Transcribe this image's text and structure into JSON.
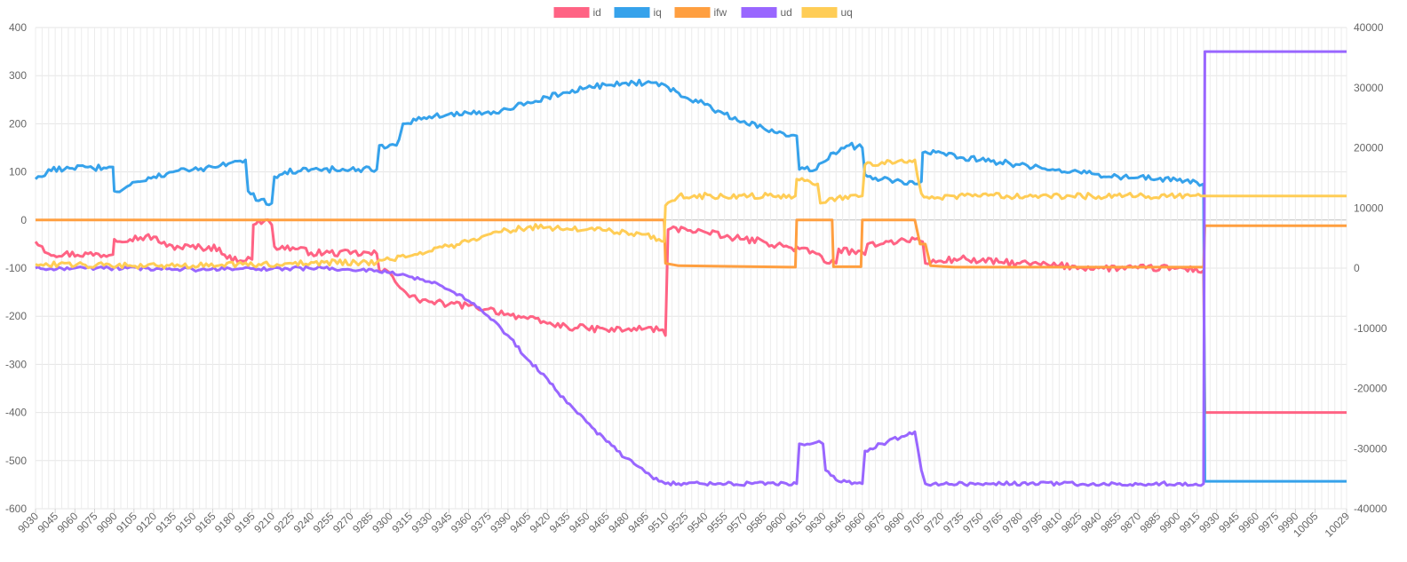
{
  "chart_data": {
    "type": "line",
    "title": "",
    "xlabel": "",
    "ylabel": "",
    "y2label": "",
    "legend_position": "top-center",
    "grid": true,
    "x_range": [
      9030,
      10029
    ],
    "ylim": [
      -600,
      400
    ],
    "y2lim": [
      -40000,
      40000
    ],
    "y_ticks": [
      400,
      300,
      200,
      100,
      0,
      -100,
      -200,
      -300,
      -400,
      -500,
      -600
    ],
    "y2_ticks": [
      40000,
      30000,
      20000,
      10000,
      0,
      -10000,
      -20000,
      -30000,
      -40000
    ],
    "x_tick_labels": [
      "9030",
      "9045",
      "9060",
      "9075",
      "9090",
      "9105",
      "9120",
      "9135",
      "9150",
      "9165",
      "9180",
      "9195",
      "9210",
      "9225",
      "9240",
      "9255",
      "9270",
      "9285",
      "9300",
      "9315",
      "9330",
      "9345",
      "9360",
      "9375",
      "9390",
      "9405",
      "9420",
      "9435",
      "9450",
      "9465",
      "9480",
      "9495",
      "9510",
      "9525",
      "9540",
      "9555",
      "9570",
      "9585",
      "9600",
      "9615",
      "9630",
      "9645",
      "9660",
      "9675",
      "9690",
      "9705",
      "9720",
      "9735",
      "9750",
      "9765",
      "9780",
      "9795",
      "9810",
      "9825",
      "9840",
      "9855",
      "9870",
      "9885",
      "9900",
      "9915",
      "9930",
      "9945",
      "9960",
      "9975",
      "9990",
      "10005",
      "10029"
    ],
    "series": [
      {
        "name": "id",
        "axis": "left",
        "color": "#ff6384",
        "noise": 7,
        "points": [
          [
            9030,
            -45
          ],
          [
            9035,
            -55
          ],
          [
            9040,
            -70
          ],
          [
            9089,
            -72
          ],
          [
            9090,
            -40
          ],
          [
            9120,
            -35
          ],
          [
            9130,
            -55
          ],
          [
            9170,
            -58
          ],
          [
            9176,
            -80
          ],
          [
            9195,
            -82
          ],
          [
            9196,
            -10
          ],
          [
            9205,
            0
          ],
          [
            9210,
            -10
          ],
          [
            9212,
            -55
          ],
          [
            9230,
            -60
          ],
          [
            9240,
            -68
          ],
          [
            9290,
            -70
          ],
          [
            9292,
            -105
          ],
          [
            9300,
            -110
          ],
          [
            9315,
            -160
          ],
          [
            9330,
            -170
          ],
          [
            9345,
            -175
          ],
          [
            9360,
            -178
          ],
          [
            9375,
            -185
          ],
          [
            9390,
            -195
          ],
          [
            9405,
            -205
          ],
          [
            9420,
            -215
          ],
          [
            9435,
            -222
          ],
          [
            9450,
            -225
          ],
          [
            9465,
            -228
          ],
          [
            9480,
            -228
          ],
          [
            9495,
            -225
          ],
          [
            9508,
            -228
          ],
          [
            9510,
            -240
          ],
          [
            9512,
            -20
          ],
          [
            9525,
            -18
          ],
          [
            9540,
            -25
          ],
          [
            9555,
            -35
          ],
          [
            9570,
            -40
          ],
          [
            9585,
            -45
          ],
          [
            9600,
            -55
          ],
          [
            9612,
            -60
          ],
          [
            9625,
            -70
          ],
          [
            9635,
            -90
          ],
          [
            9640,
            -90
          ],
          [
            9642,
            -60
          ],
          [
            9655,
            -70
          ],
          [
            9662,
            -72
          ],
          [
            9664,
            -50
          ],
          [
            9680,
            -45
          ],
          [
            9700,
            -40
          ],
          [
            9706,
            -45
          ],
          [
            9708,
            -90
          ],
          [
            9720,
            -85
          ],
          [
            9735,
            -80
          ],
          [
            9750,
            -85
          ],
          [
            9780,
            -90
          ],
          [
            9810,
            -95
          ],
          [
            9840,
            -100
          ],
          [
            9870,
            -100
          ],
          [
            9900,
            -100
          ],
          [
            9920,
            -105
          ],
          [
            9921,
            -400
          ],
          [
            10029,
            -400
          ]
        ]
      },
      {
        "name": "iq",
        "axis": "left",
        "color": "#36a2eb",
        "noise": 6,
        "points": [
          [
            9030,
            85
          ],
          [
            9035,
            90
          ],
          [
            9040,
            105
          ],
          [
            9089,
            110
          ],
          [
            9090,
            60
          ],
          [
            9100,
            70
          ],
          [
            9110,
            80
          ],
          [
            9120,
            90
          ],
          [
            9135,
            100
          ],
          [
            9150,
            105
          ],
          [
            9165,
            110
          ],
          [
            9180,
            120
          ],
          [
            9190,
            125
          ],
          [
            9192,
            60
          ],
          [
            9200,
            40
          ],
          [
            9210,
            35
          ],
          [
            9212,
            90
          ],
          [
            9220,
            100
          ],
          [
            9240,
            105
          ],
          [
            9270,
            105
          ],
          [
            9290,
            105
          ],
          [
            9292,
            155
          ],
          [
            9305,
            155
          ],
          [
            9310,
            200
          ],
          [
            9330,
            215
          ],
          [
            9345,
            220
          ],
          [
            9360,
            222
          ],
          [
            9375,
            225
          ],
          [
            9390,
            230
          ],
          [
            9405,
            245
          ],
          [
            9420,
            255
          ],
          [
            9435,
            265
          ],
          [
            9450,
            275
          ],
          [
            9465,
            280
          ],
          [
            9480,
            285
          ],
          [
            9495,
            285
          ],
          [
            9510,
            280
          ],
          [
            9525,
            255
          ],
          [
            9540,
            240
          ],
          [
            9555,
            220
          ],
          [
            9570,
            205
          ],
          [
            9585,
            190
          ],
          [
            9600,
            180
          ],
          [
            9610,
            175
          ],
          [
            9612,
            105
          ],
          [
            9625,
            105
          ],
          [
            9630,
            120
          ],
          [
            9638,
            140
          ],
          [
            9650,
            155
          ],
          [
            9660,
            150
          ],
          [
            9662,
            95
          ],
          [
            9675,
            85
          ],
          [
            9690,
            80
          ],
          [
            9700,
            75
          ],
          [
            9705,
            80
          ],
          [
            9706,
            140
          ],
          [
            9720,
            140
          ],
          [
            9735,
            130
          ],
          [
            9750,
            125
          ],
          [
            9765,
            120
          ],
          [
            9780,
            115
          ],
          [
            9795,
            110
          ],
          [
            9810,
            105
          ],
          [
            9825,
            100
          ],
          [
            9840,
            95
          ],
          [
            9855,
            90
          ],
          [
            9870,
            88
          ],
          [
            9885,
            85
          ],
          [
            9900,
            82
          ],
          [
            9915,
            78
          ],
          [
            9920,
            75
          ],
          [
            9921,
            -543
          ],
          [
            10029,
            -543
          ]
        ]
      },
      {
        "name": "ifw",
        "axis": "left",
        "color": "#ff9f40",
        "noise": 0,
        "points": [
          [
            9030,
            0
          ],
          [
            9509,
            0
          ],
          [
            9510,
            -90
          ],
          [
            9520,
            -95
          ],
          [
            9609,
            -98
          ],
          [
            9610,
            0
          ],
          [
            9637,
            0
          ],
          [
            9638,
            -97
          ],
          [
            9659,
            -97
          ],
          [
            9660,
            0
          ],
          [
            9700,
            0
          ],
          [
            9704,
            -50
          ],
          [
            9708,
            -50
          ],
          [
            9712,
            -95
          ],
          [
            9730,
            -98
          ],
          [
            9920,
            -98
          ],
          [
            9921,
            -12
          ],
          [
            10029,
            -12
          ]
        ]
      },
      {
        "name": "ud",
        "axis": "left",
        "color": "#9966ff",
        "noise": 4,
        "points": [
          [
            9030,
            -100
          ],
          [
            9100,
            -100
          ],
          [
            9150,
            -103
          ],
          [
            9200,
            -102
          ],
          [
            9250,
            -100
          ],
          [
            9290,
            -105
          ],
          [
            9300,
            -110
          ],
          [
            9315,
            -118
          ],
          [
            9330,
            -128
          ],
          [
            9345,
            -145
          ],
          [
            9360,
            -168
          ],
          [
            9375,
            -200
          ],
          [
            9390,
            -240
          ],
          [
            9405,
            -290
          ],
          [
            9420,
            -330
          ],
          [
            9435,
            -380
          ],
          [
            9450,
            -420
          ],
          [
            9465,
            -460
          ],
          [
            9480,
            -495
          ],
          [
            9495,
            -525
          ],
          [
            9505,
            -543
          ],
          [
            9510,
            -548
          ],
          [
            9610,
            -548
          ],
          [
            9612,
            -465
          ],
          [
            9625,
            -462
          ],
          [
            9630,
            -465
          ],
          [
            9632,
            -520
          ],
          [
            9640,
            -540
          ],
          [
            9660,
            -548
          ],
          [
            9662,
            -480
          ],
          [
            9675,
            -465
          ],
          [
            9690,
            -450
          ],
          [
            9700,
            -440
          ],
          [
            9705,
            -520
          ],
          [
            9708,
            -548
          ],
          [
            9920,
            -548
          ],
          [
            9921,
            350
          ],
          [
            10029,
            350
          ]
        ]
      },
      {
        "name": "uq",
        "axis": "left",
        "color": "#ffcd56",
        "noise": 6,
        "points": [
          [
            9030,
            -92
          ],
          [
            9100,
            -95
          ],
          [
            9150,
            -95
          ],
          [
            9200,
            -92
          ],
          [
            9250,
            -88
          ],
          [
            9290,
            -88
          ],
          [
            9300,
            -82
          ],
          [
            9315,
            -75
          ],
          [
            9330,
            -65
          ],
          [
            9345,
            -55
          ],
          [
            9360,
            -45
          ],
          [
            9375,
            -30
          ],
          [
            9390,
            -22
          ],
          [
            9405,
            -15
          ],
          [
            9420,
            -15
          ],
          [
            9435,
            -18
          ],
          [
            9450,
            -20
          ],
          [
            9465,
            -22
          ],
          [
            9480,
            -25
          ],
          [
            9495,
            -30
          ],
          [
            9505,
            -40
          ],
          [
            9509,
            -45
          ],
          [
            9510,
            30
          ],
          [
            9515,
            40
          ],
          [
            9520,
            50
          ],
          [
            9609,
            50
          ],
          [
            9610,
            85
          ],
          [
            9620,
            80
          ],
          [
            9626,
            75
          ],
          [
            9628,
            35
          ],
          [
            9635,
            45
          ],
          [
            9660,
            50
          ],
          [
            9662,
            115
          ],
          [
            9675,
            120
          ],
          [
            9690,
            125
          ],
          [
            9700,
            125
          ],
          [
            9705,
            55
          ],
          [
            9715,
            45
          ],
          [
            9730,
            50
          ],
          [
            9900,
            50
          ],
          [
            9920,
            50
          ],
          [
            10029,
            50
          ]
        ]
      }
    ]
  }
}
